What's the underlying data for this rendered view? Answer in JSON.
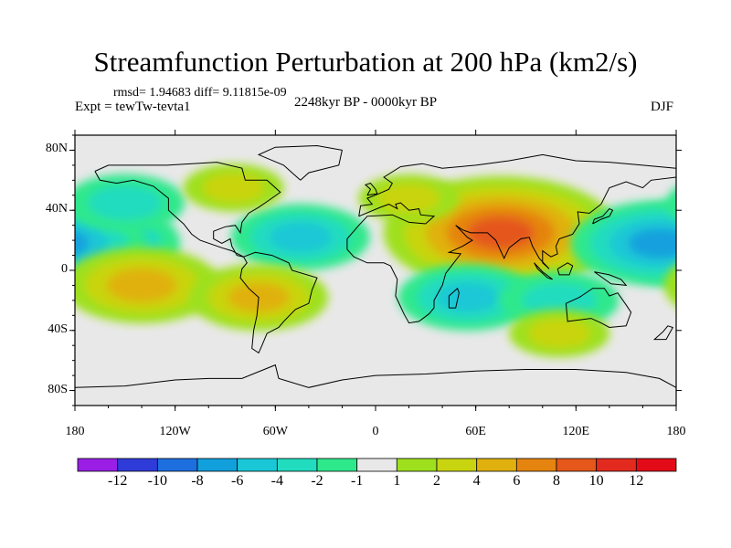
{
  "title": "Streamfunction Perturbation at 200 hPa (km2/s)",
  "stats": "rmsd= 1.94683  diff= 9.11815e-09",
  "experiment": "Expt = tewTw-tevta1",
  "period": "2248kyr BP - 0000kyr BP",
  "season": "DJF",
  "lat_labels": [
    "80N",
    "40N",
    "0",
    "40S",
    "80S"
  ],
  "lon_labels": [
    "180",
    "120W",
    "60W",
    "0",
    "60E",
    "120E",
    "180"
  ],
  "colorbar": {
    "labels": [
      "-12",
      "-10",
      "-8",
      "-6",
      "-4",
      "-2",
      "-1",
      "1",
      "2",
      "4",
      "6",
      "8",
      "10",
      "12"
    ],
    "colors": [
      "#9a1ee6",
      "#2f3bd9",
      "#1d6fe0",
      "#12a0dd",
      "#1ac7d6",
      "#22dcbf",
      "#2ee88c",
      "#e8e8e8",
      "#9ee01e",
      "#c9d411",
      "#e0b10e",
      "#e5840f",
      "#e5571a",
      "#e32a1f",
      "#e30b17"
    ]
  },
  "chart_data": {
    "type": "contour-map",
    "variable": "Streamfunction Perturbation at 200 hPa",
    "units": "km2/s",
    "levels": [
      -12,
      -10,
      -8,
      -6,
      -4,
      -2,
      -1,
      1,
      2,
      4,
      6,
      8,
      10,
      12
    ],
    "lon_range": [
      -180,
      180
    ],
    "lat_range": [
      -90,
      90
    ],
    "features": [
      {
        "name": "south-asia-high",
        "lon": 75,
        "lat": 25,
        "peak": 9
      },
      {
        "name": "east-pacific-low",
        "lon": -170,
        "lat": 18,
        "peak": -6
      },
      {
        "name": "east-pacific-low-east",
        "lon": 170,
        "lat": 18,
        "peak": -6
      },
      {
        "name": "north-pacific-low",
        "lon": -150,
        "lat": 45,
        "peak": -3
      },
      {
        "name": "atlantic-low",
        "lon": -45,
        "lat": 22,
        "peak": -4
      },
      {
        "name": "indian-ocean-low",
        "lon": 55,
        "lat": -18,
        "peak": -4
      },
      {
        "name": "australia-low",
        "lon": 110,
        "lat": -20,
        "peak": -3
      },
      {
        "name": "south-pacific-high",
        "lon": -140,
        "lat": -10,
        "peak": 5
      },
      {
        "name": "south-america-high",
        "lon": -70,
        "lat": -18,
        "peak": 4
      },
      {
        "name": "southern-ocean-high",
        "lon": 110,
        "lat": -42,
        "peak": 2
      },
      {
        "name": "north-america-high",
        "lon": -85,
        "lat": 55,
        "peak": 2
      },
      {
        "name": "north-atlantic-eurasia-high",
        "lon": 20,
        "lat": 48,
        "peak": 2
      }
    ]
  }
}
